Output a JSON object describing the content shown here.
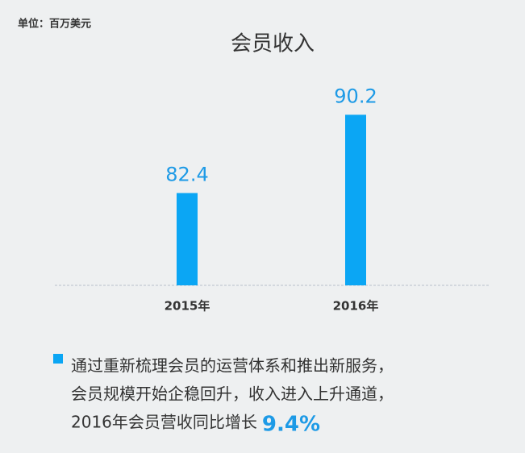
{
  "chart_data": {
    "type": "bar",
    "unit_label": "单位：百万美元",
    "title": "会员收入",
    "categories": [
      "2015年",
      "2016年"
    ],
    "values": [
      82.4,
      90.2
    ],
    "color": "#0ba6f4",
    "ylim": [
      73.2,
      92.4
    ],
    "annotation": {
      "lines": [
        "通过重新梳理会员的运营体系和推出新服务，",
        "会员规模开始企稳回升，收入进入上升通道，",
        "2016年会员营收同比增长"
      ],
      "highlight": "9.4%"
    }
  }
}
